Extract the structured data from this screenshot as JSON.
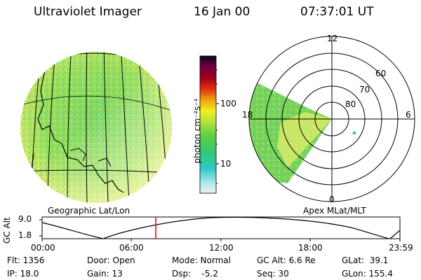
{
  "header": {
    "instrument": "Ultraviolet Imager",
    "date": "16 Jan 00",
    "time": "07:37:01 UT"
  },
  "colorbar": {
    "unit_label": "photon cm⁻²s⁻¹",
    "ticks": [
      "100",
      "10"
    ],
    "scale": "log"
  },
  "polar_plot": {
    "mlt_labels": [
      "12",
      "18",
      "6",
      "0"
    ],
    "lat_labels": [
      "60",
      "70",
      "80"
    ],
    "caption": "Apex MLat/MLT"
  },
  "geo_plot": {
    "caption": "Geographic Lat/Lon"
  },
  "altitude_timeline": {
    "ylabel": "GC Alt",
    "yticks": [
      "9.0",
      "1.8"
    ],
    "xticks": [
      "00:00",
      "06:00",
      "12:00",
      "18:00",
      "23:59"
    ],
    "marker_time": "07:37"
  },
  "footer": {
    "flt": "Flt: 1356",
    "ip": "IP: 18.0",
    "door": "Door: Open",
    "gain": "Gain: 13",
    "mode": "Mode: Normal",
    "dsp": "Dsp:    -5.2",
    "gc_alt": "GC Alt: 6.6 Re",
    "seq": "Seq: 30",
    "glat": "GLat:  39.1",
    "glon": "GLon: 155.4"
  },
  "colors": {
    "emission_green": "#4fc84a",
    "emission_yellow": "#e8ef5a",
    "emission_pale": "#f5f5a8",
    "marker_red": "#e00000"
  }
}
